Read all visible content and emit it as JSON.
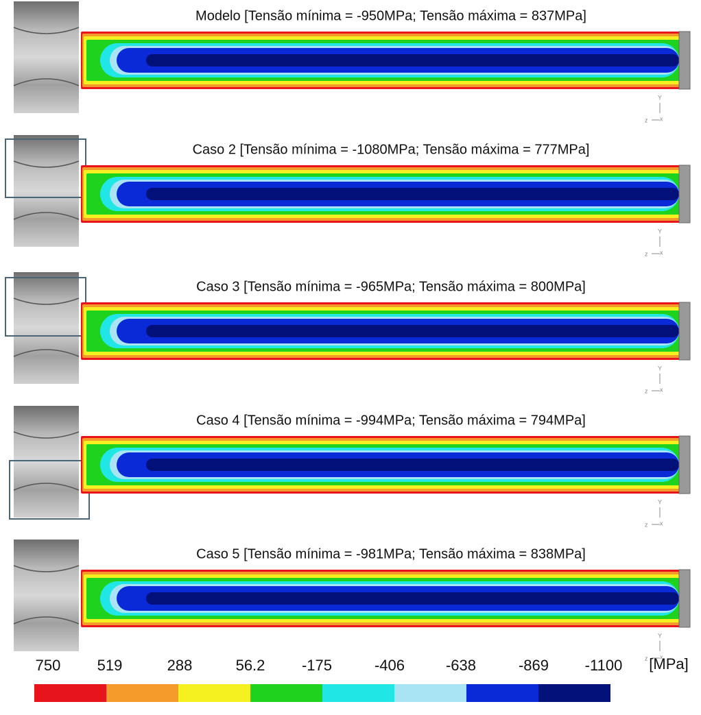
{
  "panels": [
    {
      "title": "Modelo [Tensão mínima = -950MPa; Tensão máxima = 837MPa]",
      "triad": {
        "y": "Y",
        "z": "z",
        "x": "x"
      }
    },
    {
      "title": "Caso 2 [Tensão mínima = -1080MPa; Tensão máxima = 777MPa]",
      "triad": {
        "y": "Y",
        "z": "z",
        "x": "x"
      }
    },
    {
      "title": "Caso 3 [Tensão mínima = -965MPa; Tensão máxima = 800MPa]",
      "triad": {
        "y": "Y",
        "z": "z",
        "x": "x"
      }
    },
    {
      "title": "Caso 4 [Tensão mínima = -994MPa; Tensão máxima = 794MPa]",
      "triad": {
        "y": "Y",
        "z": "z",
        "x": "x"
      }
    },
    {
      "title": "Caso 5 [Tensão mínima = -981MPa; Tensão máxima = 838MPa]",
      "triad": {
        "y": "Y",
        "z": "z",
        "x": "x"
      }
    }
  ],
  "colorbar": {
    "labels": [
      "750",
      "519",
      "288",
      "56.2",
      "-175",
      "-406",
      "-638",
      "-869",
      "-1100"
    ],
    "unit": "[MPa]",
    "colors": [
      "#e8141c",
      "#f39a2a",
      "#f5f020",
      "#1ed21e",
      "#20e6e6",
      "#a8e4f4",
      "#0a2ad8",
      "#02107a"
    ]
  }
}
